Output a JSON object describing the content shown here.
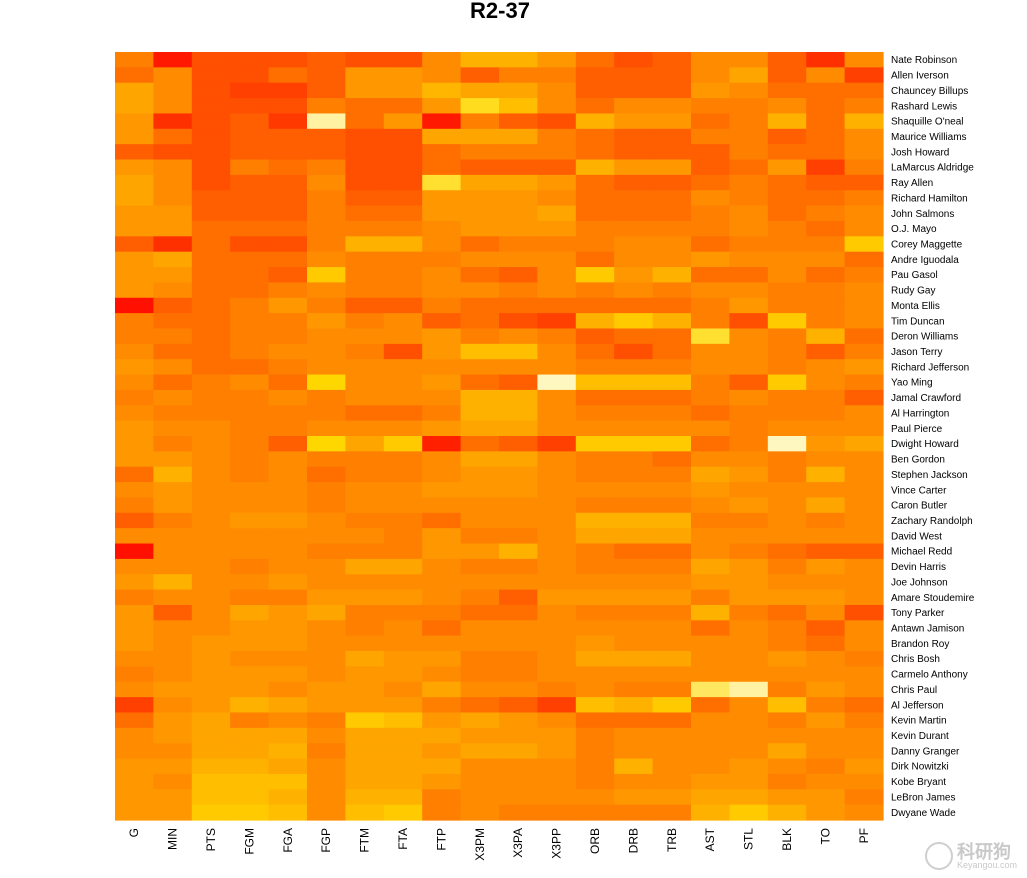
{
  "watermark": {
    "brand": "科研狗",
    "url": "Keyangou.com"
  },
  "chart_data": {
    "type": "heatmap",
    "title": "R2-37",
    "columns": [
      "G",
      "MIN",
      "PTS",
      "FGM",
      "FGA",
      "FGP",
      "FTM",
      "FTA",
      "FTP",
      "X3PM",
      "X3PA",
      "X3PP",
      "ORB",
      "DRB",
      "TRB",
      "AST",
      "STL",
      "BLK",
      "TO",
      "PF"
    ],
    "rows": [
      "Nate Robinson",
      "Allen Iverson",
      "Chauncey Billups",
      "Rashard Lewis",
      "Shaquille O'neal",
      "Maurice Williams",
      "Josh Howard",
      "LaMarcus Aldridge",
      "Ray Allen",
      "Richard Hamilton",
      "John Salmons",
      "O.J. Mayo",
      "Corey Maggette",
      "Andre Iguodala",
      "Pau Gasol",
      "Rudy Gay",
      "Monta Ellis",
      "Tim Duncan",
      "Deron Williams",
      "Jason Terry",
      "Richard Jefferson",
      "Yao Ming",
      "Jamal Crawford",
      "Al Harrington",
      "Paul Pierce",
      "Dwight Howard",
      "Ben Gordon",
      "Stephen Jackson",
      "Vince Carter",
      "Caron Butler",
      "Zachary Randolph",
      "David West",
      "Michael Redd",
      "Devin Harris",
      "Joe Johnson",
      "Amare Stoudemire",
      "Tony Parker",
      "Antawn Jamison",
      "Brandon Roy",
      "Chris Bosh",
      "Carmelo Anthony",
      "Chris Paul",
      "Al Jefferson",
      "Kevin Martin",
      "Kevin Durant",
      "Danny Granger",
      "Dirk Nowitzki",
      "Kobe Bryant",
      "LeBron James",
      "Dwyane Wade"
    ],
    "color_scale": {
      "low": "#ff0000",
      "mid_low": "#ff7f00",
      "mid_high": "#ffd700",
      "high": "#fffff0"
    },
    "values": [
      [
        0.4,
        0.08,
        0.25,
        0.25,
        0.25,
        0.3,
        0.25,
        0.25,
        0.45,
        0.6,
        0.6,
        0.5,
        0.35,
        0.25,
        0.3,
        0.45,
        0.45,
        0.3,
        0.15,
        0.45
      ],
      [
        0.35,
        0.45,
        0.25,
        0.25,
        0.35,
        0.3,
        0.5,
        0.5,
        0.45,
        0.3,
        0.4,
        0.4,
        0.3,
        0.3,
        0.3,
        0.45,
        0.55,
        0.3,
        0.45,
        0.2
      ],
      [
        0.55,
        0.45,
        0.25,
        0.2,
        0.2,
        0.3,
        0.5,
        0.5,
        0.62,
        0.55,
        0.55,
        0.45,
        0.3,
        0.3,
        0.3,
        0.5,
        0.45,
        0.35,
        0.35,
        0.35
      ],
      [
        0.55,
        0.45,
        0.25,
        0.25,
        0.25,
        0.4,
        0.35,
        0.35,
        0.5,
        0.78,
        0.65,
        0.45,
        0.35,
        0.45,
        0.45,
        0.4,
        0.4,
        0.45,
        0.35,
        0.4
      ],
      [
        0.5,
        0.15,
        0.25,
        0.3,
        0.18,
        0.92,
        0.35,
        0.5,
        0.08,
        0.4,
        0.3,
        0.25,
        0.6,
        0.5,
        0.5,
        0.35,
        0.4,
        0.6,
        0.35,
        0.6
      ],
      [
        0.5,
        0.35,
        0.25,
        0.3,
        0.3,
        0.3,
        0.25,
        0.25,
        0.55,
        0.55,
        0.55,
        0.4,
        0.35,
        0.3,
        0.3,
        0.4,
        0.4,
        0.3,
        0.35,
        0.45
      ],
      [
        0.3,
        0.25,
        0.25,
        0.3,
        0.3,
        0.3,
        0.25,
        0.25,
        0.35,
        0.4,
        0.4,
        0.4,
        0.35,
        0.3,
        0.3,
        0.3,
        0.4,
        0.35,
        0.35,
        0.45
      ],
      [
        0.5,
        0.45,
        0.25,
        0.4,
        0.35,
        0.4,
        0.25,
        0.25,
        0.35,
        0.3,
        0.3,
        0.3,
        0.6,
        0.5,
        0.5,
        0.3,
        0.35,
        0.5,
        0.2,
        0.4
      ],
      [
        0.55,
        0.45,
        0.25,
        0.3,
        0.3,
        0.45,
        0.25,
        0.25,
        0.8,
        0.55,
        0.55,
        0.5,
        0.35,
        0.3,
        0.3,
        0.35,
        0.4,
        0.35,
        0.3,
        0.3
      ],
      [
        0.55,
        0.45,
        0.3,
        0.3,
        0.3,
        0.4,
        0.3,
        0.3,
        0.5,
        0.5,
        0.5,
        0.45,
        0.35,
        0.35,
        0.35,
        0.45,
        0.4,
        0.35,
        0.35,
        0.4
      ],
      [
        0.5,
        0.5,
        0.3,
        0.3,
        0.3,
        0.4,
        0.35,
        0.35,
        0.5,
        0.5,
        0.5,
        0.55,
        0.35,
        0.35,
        0.35,
        0.4,
        0.45,
        0.35,
        0.4,
        0.45
      ],
      [
        0.5,
        0.5,
        0.35,
        0.35,
        0.35,
        0.4,
        0.4,
        0.4,
        0.45,
        0.5,
        0.5,
        0.5,
        0.4,
        0.4,
        0.4,
        0.4,
        0.45,
        0.4,
        0.35,
        0.45
      ],
      [
        0.3,
        0.15,
        0.35,
        0.25,
        0.25,
        0.4,
        0.6,
        0.6,
        0.45,
        0.35,
        0.4,
        0.4,
        0.4,
        0.45,
        0.45,
        0.35,
        0.4,
        0.4,
        0.4,
        0.7
      ],
      [
        0.5,
        0.55,
        0.35,
        0.35,
        0.35,
        0.45,
        0.4,
        0.4,
        0.4,
        0.45,
        0.45,
        0.45,
        0.35,
        0.45,
        0.45,
        0.5,
        0.45,
        0.45,
        0.45,
        0.35
      ],
      [
        0.5,
        0.5,
        0.35,
        0.35,
        0.3,
        0.7,
        0.4,
        0.4,
        0.45,
        0.35,
        0.3,
        0.45,
        0.7,
        0.5,
        0.6,
        0.35,
        0.35,
        0.45,
        0.35,
        0.4
      ],
      [
        0.5,
        0.45,
        0.35,
        0.35,
        0.4,
        0.45,
        0.4,
        0.4,
        0.45,
        0.45,
        0.4,
        0.45,
        0.4,
        0.45,
        0.4,
        0.45,
        0.45,
        0.4,
        0.4,
        0.45
      ],
      [
        0.05,
        0.3,
        0.35,
        0.4,
        0.5,
        0.4,
        0.3,
        0.3,
        0.4,
        0.35,
        0.35,
        0.35,
        0.35,
        0.35,
        0.35,
        0.4,
        0.5,
        0.4,
        0.4,
        0.45
      ],
      [
        0.4,
        0.35,
        0.35,
        0.4,
        0.4,
        0.5,
        0.4,
        0.45,
        0.3,
        0.35,
        0.25,
        0.2,
        0.6,
        0.7,
        0.6,
        0.4,
        0.25,
        0.7,
        0.4,
        0.45
      ],
      [
        0.4,
        0.4,
        0.35,
        0.4,
        0.4,
        0.45,
        0.45,
        0.45,
        0.5,
        0.4,
        0.45,
        0.4,
        0.3,
        0.35,
        0.35,
        0.8,
        0.45,
        0.4,
        0.6,
        0.35
      ],
      [
        0.45,
        0.35,
        0.35,
        0.4,
        0.45,
        0.45,
        0.4,
        0.25,
        0.5,
        0.65,
        0.65,
        0.45,
        0.35,
        0.25,
        0.35,
        0.45,
        0.45,
        0.4,
        0.3,
        0.4
      ],
      [
        0.5,
        0.45,
        0.35,
        0.35,
        0.4,
        0.45,
        0.45,
        0.45,
        0.45,
        0.45,
        0.45,
        0.45,
        0.4,
        0.4,
        0.4,
        0.45,
        0.45,
        0.4,
        0.45,
        0.5
      ],
      [
        0.45,
        0.35,
        0.4,
        0.45,
        0.35,
        0.75,
        0.45,
        0.45,
        0.5,
        0.35,
        0.3,
        0.95,
        0.65,
        0.65,
        0.65,
        0.4,
        0.3,
        0.7,
        0.45,
        0.4
      ],
      [
        0.4,
        0.45,
        0.4,
        0.4,
        0.45,
        0.4,
        0.45,
        0.45,
        0.45,
        0.6,
        0.6,
        0.45,
        0.35,
        0.35,
        0.35,
        0.4,
        0.45,
        0.4,
        0.4,
        0.3
      ],
      [
        0.45,
        0.4,
        0.4,
        0.4,
        0.4,
        0.4,
        0.35,
        0.35,
        0.4,
        0.6,
        0.6,
        0.45,
        0.4,
        0.4,
        0.4,
        0.35,
        0.4,
        0.4,
        0.4,
        0.45
      ],
      [
        0.5,
        0.45,
        0.45,
        0.4,
        0.4,
        0.45,
        0.45,
        0.45,
        0.5,
        0.55,
        0.55,
        0.45,
        0.45,
        0.45,
        0.45,
        0.45,
        0.4,
        0.45,
        0.45,
        0.45
      ],
      [
        0.5,
        0.4,
        0.45,
        0.4,
        0.3,
        0.75,
        0.55,
        0.7,
        0.1,
        0.35,
        0.3,
        0.2,
        0.7,
        0.7,
        0.7,
        0.35,
        0.4,
        0.95,
        0.5,
        0.55
      ],
      [
        0.5,
        0.5,
        0.45,
        0.4,
        0.45,
        0.4,
        0.4,
        0.4,
        0.45,
        0.55,
        0.55,
        0.45,
        0.4,
        0.4,
        0.35,
        0.45,
        0.45,
        0.4,
        0.45,
        0.45
      ],
      [
        0.35,
        0.6,
        0.45,
        0.4,
        0.45,
        0.35,
        0.4,
        0.4,
        0.45,
        0.5,
        0.5,
        0.45,
        0.4,
        0.4,
        0.4,
        0.55,
        0.5,
        0.4,
        0.6,
        0.45
      ],
      [
        0.45,
        0.5,
        0.45,
        0.45,
        0.45,
        0.4,
        0.45,
        0.45,
        0.5,
        0.5,
        0.5,
        0.45,
        0.45,
        0.45,
        0.45,
        0.5,
        0.45,
        0.45,
        0.45,
        0.45
      ],
      [
        0.4,
        0.5,
        0.45,
        0.45,
        0.45,
        0.4,
        0.45,
        0.45,
        0.45,
        0.45,
        0.45,
        0.45,
        0.4,
        0.4,
        0.4,
        0.45,
        0.5,
        0.45,
        0.55,
        0.45
      ],
      [
        0.3,
        0.4,
        0.45,
        0.5,
        0.5,
        0.45,
        0.4,
        0.4,
        0.35,
        0.45,
        0.45,
        0.45,
        0.6,
        0.6,
        0.6,
        0.4,
        0.4,
        0.45,
        0.4,
        0.45
      ],
      [
        0.45,
        0.45,
        0.45,
        0.45,
        0.45,
        0.45,
        0.45,
        0.4,
        0.5,
        0.4,
        0.4,
        0.45,
        0.55,
        0.55,
        0.55,
        0.45,
        0.45,
        0.45,
        0.45,
        0.45
      ],
      [
        0.05,
        0.45,
        0.45,
        0.45,
        0.45,
        0.4,
        0.4,
        0.4,
        0.5,
        0.5,
        0.6,
        0.45,
        0.4,
        0.35,
        0.35,
        0.45,
        0.4,
        0.35,
        0.3,
        0.3
      ],
      [
        0.45,
        0.45,
        0.45,
        0.4,
        0.45,
        0.45,
        0.55,
        0.55,
        0.45,
        0.4,
        0.4,
        0.45,
        0.4,
        0.4,
        0.4,
        0.55,
        0.5,
        0.4,
        0.5,
        0.45
      ],
      [
        0.5,
        0.6,
        0.45,
        0.45,
        0.5,
        0.45,
        0.45,
        0.45,
        0.45,
        0.45,
        0.45,
        0.45,
        0.45,
        0.45,
        0.45,
        0.5,
        0.5,
        0.45,
        0.45,
        0.45
      ],
      [
        0.4,
        0.45,
        0.45,
        0.4,
        0.4,
        0.5,
        0.5,
        0.5,
        0.45,
        0.4,
        0.3,
        0.5,
        0.5,
        0.5,
        0.5,
        0.4,
        0.5,
        0.5,
        0.5,
        0.45
      ],
      [
        0.5,
        0.3,
        0.45,
        0.55,
        0.5,
        0.55,
        0.4,
        0.4,
        0.4,
        0.35,
        0.35,
        0.45,
        0.4,
        0.4,
        0.4,
        0.6,
        0.4,
        0.35,
        0.45,
        0.25
      ],
      [
        0.5,
        0.45,
        0.45,
        0.5,
        0.5,
        0.45,
        0.4,
        0.45,
        0.35,
        0.45,
        0.45,
        0.45,
        0.45,
        0.45,
        0.45,
        0.35,
        0.45,
        0.4,
        0.3,
        0.45
      ],
      [
        0.5,
        0.45,
        0.5,
        0.5,
        0.5,
        0.45,
        0.45,
        0.45,
        0.45,
        0.45,
        0.45,
        0.45,
        0.5,
        0.45,
        0.45,
        0.45,
        0.45,
        0.4,
        0.35,
        0.45
      ],
      [
        0.45,
        0.45,
        0.5,
        0.45,
        0.45,
        0.45,
        0.55,
        0.5,
        0.5,
        0.4,
        0.4,
        0.45,
        0.55,
        0.55,
        0.55,
        0.45,
        0.45,
        0.5,
        0.45,
        0.4
      ],
      [
        0.4,
        0.45,
        0.5,
        0.5,
        0.5,
        0.45,
        0.5,
        0.5,
        0.45,
        0.4,
        0.4,
        0.45,
        0.45,
        0.45,
        0.45,
        0.45,
        0.45,
        0.45,
        0.45,
        0.45
      ],
      [
        0.45,
        0.5,
        0.5,
        0.5,
        0.45,
        0.5,
        0.5,
        0.45,
        0.55,
        0.45,
        0.45,
        0.4,
        0.45,
        0.4,
        0.4,
        0.85,
        0.92,
        0.4,
        0.5,
        0.45
      ],
      [
        0.2,
        0.45,
        0.5,
        0.6,
        0.55,
        0.5,
        0.5,
        0.5,
        0.4,
        0.35,
        0.3,
        0.2,
        0.65,
        0.6,
        0.7,
        0.35,
        0.45,
        0.65,
        0.4,
        0.35
      ],
      [
        0.35,
        0.5,
        0.55,
        0.4,
        0.45,
        0.4,
        0.7,
        0.65,
        0.5,
        0.55,
        0.5,
        0.45,
        0.35,
        0.35,
        0.35,
        0.45,
        0.45,
        0.4,
        0.5,
        0.4
      ],
      [
        0.45,
        0.5,
        0.55,
        0.55,
        0.55,
        0.45,
        0.55,
        0.55,
        0.55,
        0.5,
        0.5,
        0.5,
        0.4,
        0.45,
        0.45,
        0.45,
        0.45,
        0.45,
        0.45,
        0.45
      ],
      [
        0.45,
        0.45,
        0.55,
        0.55,
        0.6,
        0.4,
        0.55,
        0.55,
        0.5,
        0.55,
        0.55,
        0.5,
        0.4,
        0.45,
        0.45,
        0.45,
        0.45,
        0.55,
        0.45,
        0.45
      ],
      [
        0.5,
        0.5,
        0.6,
        0.6,
        0.55,
        0.45,
        0.55,
        0.55,
        0.55,
        0.45,
        0.45,
        0.45,
        0.4,
        0.6,
        0.45,
        0.45,
        0.5,
        0.45,
        0.4,
        0.5
      ],
      [
        0.5,
        0.45,
        0.65,
        0.65,
        0.65,
        0.45,
        0.55,
        0.55,
        0.5,
        0.45,
        0.45,
        0.45,
        0.4,
        0.45,
        0.45,
        0.5,
        0.5,
        0.4,
        0.45,
        0.45
      ],
      [
        0.5,
        0.5,
        0.65,
        0.65,
        0.6,
        0.45,
        0.6,
        0.6,
        0.4,
        0.45,
        0.45,
        0.45,
        0.45,
        0.5,
        0.5,
        0.55,
        0.55,
        0.5,
        0.5,
        0.4
      ],
      [
        0.5,
        0.5,
        0.7,
        0.7,
        0.65,
        0.45,
        0.65,
        0.7,
        0.4,
        0.45,
        0.4,
        0.4,
        0.4,
        0.4,
        0.4,
        0.6,
        0.7,
        0.6,
        0.5,
        0.45
      ]
    ]
  }
}
